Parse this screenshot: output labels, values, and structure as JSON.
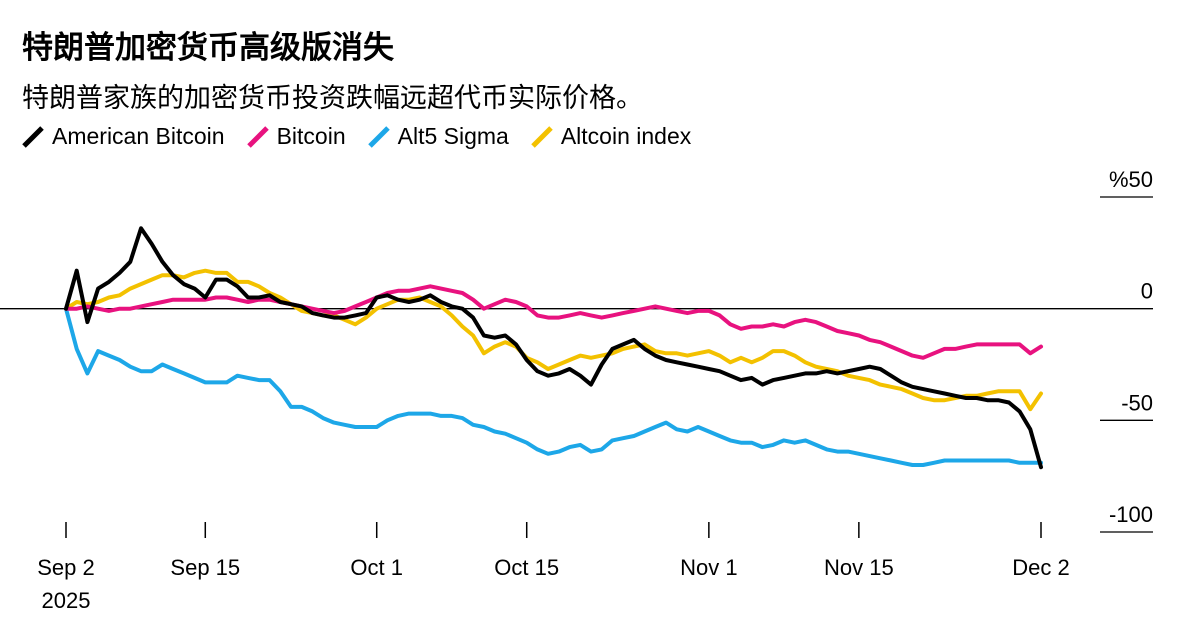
{
  "chart_data": {
    "type": "line",
    "title": "特朗普加密货币高级版消失",
    "subtitle": "特朗普家族的加密货币投资跌幅远超代币实际价格。",
    "unit_label": "%50",
    "ylim": [
      -100,
      50
    ],
    "y_ticks": [
      {
        "value": 50,
        "label": "%50"
      },
      {
        "value": 0,
        "label": "0"
      },
      {
        "value": -50,
        "label": "-50"
      },
      {
        "value": -100,
        "label": "-100"
      }
    ],
    "x_domain": [
      0,
      91
    ],
    "x_ticks": [
      {
        "day": 0,
        "label": "Sep 2",
        "sublabel": "2025"
      },
      {
        "day": 13,
        "label": "Sep 15"
      },
      {
        "day": 29,
        "label": "Oct 1"
      },
      {
        "day": 43,
        "label": "Oct 15"
      },
      {
        "day": 60,
        "label": "Nov 1"
      },
      {
        "day": 74,
        "label": "Nov 15"
      },
      {
        "day": 91,
        "label": "Dec 2"
      }
    ],
    "series": [
      {
        "name": "American Bitcoin",
        "color": "#000000",
        "x": [
          0,
          1,
          2,
          3,
          4,
          5,
          6,
          7,
          8,
          9,
          10,
          11,
          12,
          13,
          14,
          15,
          16,
          17,
          18,
          19,
          20,
          21,
          22,
          23,
          24,
          25,
          26,
          27,
          28,
          29,
          30,
          31,
          32,
          33,
          34,
          35,
          36,
          37,
          38,
          39,
          40,
          41,
          42,
          43,
          44,
          45,
          46,
          47,
          48,
          49,
          50,
          51,
          52,
          53,
          54,
          55,
          56,
          57,
          58,
          59,
          60,
          61,
          62,
          63,
          64,
          65,
          66,
          67,
          68,
          69,
          70,
          71,
          72,
          73,
          74,
          75,
          76,
          77,
          78,
          79,
          80,
          81,
          82,
          83,
          84,
          85,
          86,
          87,
          88,
          89,
          90,
          91
        ],
        "values": [
          0,
          17,
          -6,
          9,
          12,
          16,
          21,
          36,
          29,
          21,
          15,
          11,
          9,
          5,
          13,
          13,
          10,
          5,
          5,
          6,
          3,
          2,
          1,
          -2,
          -3,
          -4,
          -4,
          -3,
          -2,
          5,
          6,
          4,
          3,
          4,
          6,
          3,
          1,
          0,
          -4,
          -12,
          -13,
          -12,
          -16,
          -23,
          -28,
          -30,
          -29,
          -27,
          -30,
          -34,
          -25,
          -18,
          -16,
          -14,
          -18,
          -21,
          -23,
          -24,
          -25,
          -26,
          -27,
          -28,
          -30,
          -32,
          -31,
          -34,
          -32,
          -31,
          -30,
          -29,
          -29,
          -28,
          -29,
          -28,
          -27,
          -26,
          -27,
          -30,
          -33,
          -35,
          -36,
          -37,
          -38,
          -39,
          -40,
          -40,
          -41,
          -41,
          -42,
          -46,
          -54,
          -71
        ]
      },
      {
        "name": "Bitcoin",
        "color": "#E8127F",
        "x": [
          0,
          1,
          2,
          3,
          4,
          5,
          6,
          7,
          8,
          9,
          10,
          11,
          12,
          13,
          14,
          15,
          16,
          17,
          18,
          19,
          20,
          21,
          22,
          23,
          24,
          25,
          26,
          27,
          28,
          29,
          30,
          31,
          32,
          33,
          34,
          35,
          36,
          37,
          38,
          39,
          40,
          41,
          42,
          43,
          44,
          45,
          46,
          47,
          48,
          49,
          50,
          51,
          52,
          53,
          54,
          55,
          56,
          57,
          58,
          59,
          60,
          61,
          62,
          63,
          64,
          65,
          66,
          67,
          68,
          69,
          70,
          71,
          72,
          73,
          74,
          75,
          76,
          77,
          78,
          79,
          80,
          81,
          82,
          83,
          84,
          85,
          86,
          87,
          88,
          89,
          90,
          91
        ],
        "values": [
          0,
          0,
          1,
          0,
          -1,
          0,
          0,
          1,
          2,
          3,
          4,
          4,
          4,
          4,
          5,
          5,
          4,
          3,
          4,
          4,
          3,
          2,
          1,
          0,
          -1,
          -2,
          -1,
          1,
          3,
          5,
          7,
          8,
          8,
          9,
          10,
          9,
          8,
          7,
          4,
          0,
          2,
          4,
          3,
          1,
          -3,
          -4,
          -4,
          -3,
          -2,
          -3,
          -4,
          -3,
          -2,
          -1,
          0,
          1,
          0,
          -1,
          -2,
          -1,
          -1,
          -3,
          -7,
          -9,
          -8,
          -8,
          -7,
          -8,
          -6,
          -5,
          -6,
          -8,
          -10,
          -11,
          -12,
          -14,
          -15,
          -17,
          -19,
          -21,
          -22,
          -20,
          -18,
          -18,
          -17,
          -16,
          -16,
          -16,
          -16,
          -16,
          -20,
          -17
        ]
      },
      {
        "name": "Alt5 Sigma",
        "color": "#1DA7E8",
        "x": [
          0,
          1,
          2,
          3,
          4,
          5,
          6,
          7,
          8,
          9,
          10,
          11,
          12,
          13,
          14,
          15,
          16,
          17,
          18,
          19,
          20,
          21,
          22,
          23,
          24,
          25,
          26,
          27,
          28,
          29,
          30,
          31,
          32,
          33,
          34,
          35,
          36,
          37,
          38,
          39,
          40,
          41,
          42,
          43,
          44,
          45,
          46,
          47,
          48,
          49,
          50,
          51,
          52,
          53,
          54,
          55,
          56,
          57,
          58,
          59,
          60,
          61,
          62,
          63,
          64,
          65,
          66,
          67,
          68,
          69,
          70,
          71,
          72,
          73,
          74,
          75,
          76,
          77,
          78,
          79,
          80,
          81,
          82,
          83,
          84,
          85,
          86,
          87,
          88,
          89,
          90,
          91
        ],
        "values": [
          0,
          -18,
          -29,
          -19,
          -21,
          -23,
          -26,
          -28,
          -28,
          -25,
          -27,
          -29,
          -31,
          -33,
          -33,
          -33,
          -30,
          -31,
          -32,
          -32,
          -37,
          -44,
          -44,
          -46,
          -49,
          -51,
          -52,
          -53,
          -53,
          -53,
          -50,
          -48,
          -47,
          -47,
          -47,
          -48,
          -48,
          -49,
          -52,
          -53,
          -55,
          -56,
          -58,
          -60,
          -63,
          -65,
          -64,
          -62,
          -61,
          -64,
          -63,
          -59,
          -58,
          -57,
          -55,
          -53,
          -51,
          -54,
          -55,
          -53,
          -55,
          -57,
          -59,
          -60,
          -60,
          -62,
          -61,
          -59,
          -60,
          -59,
          -61,
          -63,
          -64,
          -64,
          -65,
          -66,
          -67,
          -68,
          -69,
          -70,
          -70,
          -69,
          -68,
          -68,
          -68,
          -68,
          -68,
          -68,
          -68,
          -69,
          -69,
          -69
        ]
      },
      {
        "name": "Altcoin index",
        "color": "#F3C100",
        "x": [
          0,
          1,
          2,
          3,
          4,
          5,
          6,
          7,
          8,
          9,
          10,
          11,
          12,
          13,
          14,
          15,
          16,
          17,
          18,
          19,
          20,
          21,
          22,
          23,
          24,
          25,
          26,
          27,
          28,
          29,
          30,
          31,
          32,
          33,
          34,
          35,
          36,
          37,
          38,
          39,
          40,
          41,
          42,
          43,
          44,
          45,
          46,
          47,
          48,
          49,
          50,
          51,
          52,
          53,
          54,
          55,
          56,
          57,
          58,
          59,
          60,
          61,
          62,
          63,
          64,
          65,
          66,
          67,
          68,
          69,
          70,
          71,
          72,
          73,
          74,
          75,
          76,
          77,
          78,
          79,
          80,
          81,
          82,
          83,
          84,
          85,
          86,
          87,
          88,
          89,
          90,
          91
        ],
        "values": [
          0,
          3,
          2,
          3,
          5,
          6,
          9,
          11,
          13,
          15,
          15,
          14,
          16,
          17,
          16,
          16,
          12,
          12,
          10,
          7,
          5,
          2,
          -1,
          -2,
          -3,
          -3,
          -5,
          -7,
          -4,
          0,
          2,
          4,
          4,
          5,
          3,
          1,
          -3,
          -8,
          -12,
          -20,
          -17,
          -15,
          -17,
          -22,
          -24,
          -27,
          -25,
          -23,
          -21,
          -22,
          -21,
          -20,
          -18,
          -17,
          -16,
          -19,
          -20,
          -20,
          -21,
          -20,
          -19,
          -21,
          -24,
          -22,
          -24,
          -22,
          -19,
          -19,
          -21,
          -24,
          -26,
          -27,
          -28,
          -30,
          -31,
          -32,
          -34,
          -35,
          -36,
          -38,
          -40,
          -41,
          -41,
          -40,
          -39,
          -39,
          -38,
          -37,
          -37,
          -37,
          -45,
          -38
        ]
      }
    ]
  }
}
